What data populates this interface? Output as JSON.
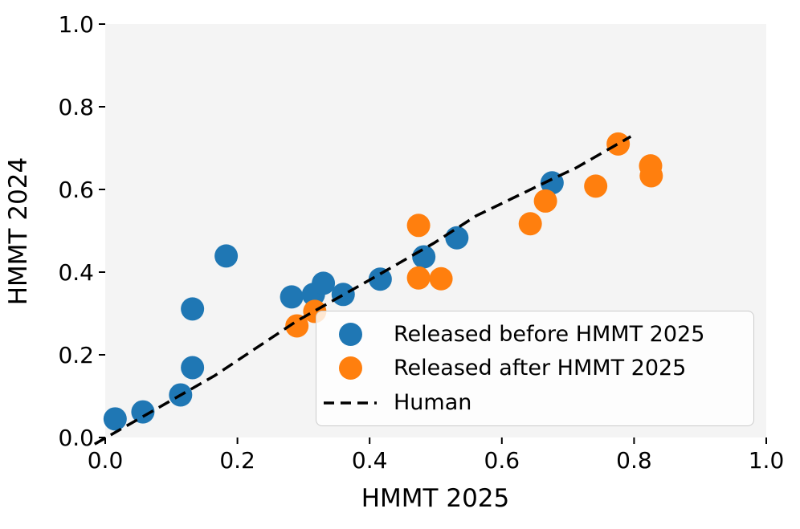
{
  "chart_data": {
    "type": "scatter",
    "title": "",
    "xlabel": "HMMT 2025",
    "ylabel": "HMMT 2024",
    "xlim": [
      0.0,
      1.0
    ],
    "ylim": [
      0.0,
      1.0
    ],
    "xticks": [
      0.0,
      0.2,
      0.4,
      0.6,
      0.8,
      1.0
    ],
    "yticks": [
      0.0,
      0.2,
      0.4,
      0.6,
      0.8,
      1.0
    ],
    "xtick_labels": [
      "0.0",
      "0.2",
      "0.4",
      "0.6",
      "0.8",
      "1.0"
    ],
    "ytick_labels": [
      "0.0",
      "0.2",
      "0.4",
      "0.6",
      "0.8",
      "1.0"
    ],
    "grid": false,
    "panel_color": "#f4f4f4",
    "legend_location": "lower right (inside axes)",
    "series": [
      {
        "name": "Released before HMMT 2025",
        "type": "scatter",
        "color": "#1f77b4",
        "points": [
          [
            0.015,
            0.045
          ],
          [
            0.057,
            0.062
          ],
          [
            0.114,
            0.103
          ],
          [
            0.132,
            0.169
          ],
          [
            0.132,
            0.311
          ],
          [
            0.183,
            0.439
          ],
          [
            0.282,
            0.34
          ],
          [
            0.315,
            0.346
          ],
          [
            0.33,
            0.373
          ],
          [
            0.36,
            0.346
          ],
          [
            0.416,
            0.383
          ],
          [
            0.482,
            0.437
          ],
          [
            0.532,
            0.483
          ],
          [
            0.676,
            0.616
          ]
        ]
      },
      {
        "name": "Released after HMMT 2025",
        "type": "scatter",
        "color": "#ff7f0e",
        "points": [
          [
            0.29,
            0.27
          ],
          [
            0.317,
            0.305
          ],
          [
            0.474,
            0.513
          ],
          [
            0.474,
            0.386
          ],
          [
            0.508,
            0.384
          ],
          [
            0.643,
            0.517
          ],
          [
            0.666,
            0.572
          ],
          [
            0.742,
            0.608
          ],
          [
            0.776,
            0.71
          ],
          [
            0.825,
            0.657
          ],
          [
            0.826,
            0.633
          ]
        ]
      },
      {
        "name": "Human",
        "type": "line",
        "style": "dashed",
        "color": "#000000",
        "points": [
          [
            -0.016,
            -0.016
          ],
          [
            0.166,
            0.15
          ],
          [
            0.29,
            0.282
          ],
          [
            0.4,
            0.381
          ],
          [
            0.497,
            0.47
          ],
          [
            0.561,
            0.536
          ],
          [
            0.676,
            0.625
          ],
          [
            0.712,
            0.652
          ],
          [
            0.795,
            0.728
          ]
        ]
      }
    ]
  }
}
